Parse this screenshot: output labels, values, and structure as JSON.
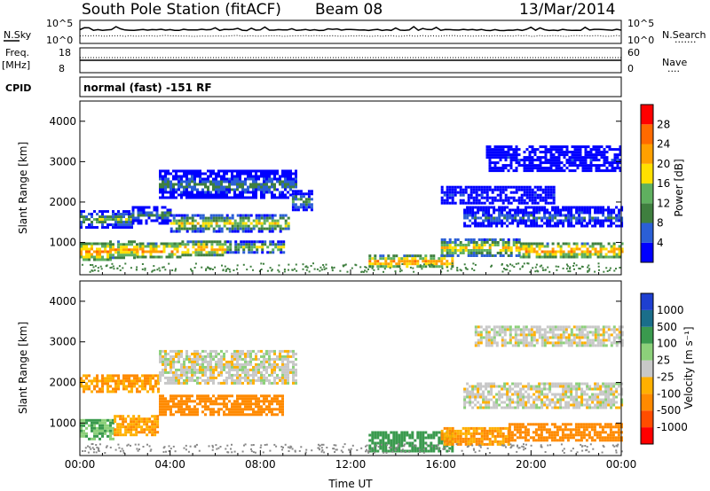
{
  "header": {
    "station": "South Pole Station (fitACF)",
    "beam": "Beam 08",
    "date": "13/Mar/2014"
  },
  "left_labels": {
    "nsky": "N.Sky",
    "freq": "Freq.",
    "mhz": "[MHz]",
    "cpid": "CPID"
  },
  "right_labels": {
    "nsearch": "N.Search",
    "nave": "Nave",
    "dots": "·······",
    "dots_short": "····"
  },
  "noise_ticks": {
    "top_left": "10^5",
    "bottom_left": "10^0",
    "top_right": "10^5",
    "bottom_right": "10^0"
  },
  "freq_ticks": {
    "left_top": "18",
    "left_bottom": "8",
    "right_top": "60",
    "right_bottom": "0"
  },
  "cpid_text": "normal (fast) -151 RF",
  "colors": {
    "power": [
      "#0000ff",
      "#2b5fd6",
      "#3f7f3f",
      "#5fb05f",
      "#ffe000",
      "#ffa000",
      "#ff6a00",
      "#ff0000"
    ],
    "velocity": [
      "#ff0000",
      "#ff4d00",
      "#ff8a00",
      "#ffb000",
      "#c8c8c8",
      "#8cd07a",
      "#3a9a4e",
      "#1a6e8a",
      "#1e3fd0"
    ]
  },
  "chart_data": [
    {
      "type": "heatmap",
      "ylabel": "Slant Range [km]",
      "yticks": [
        "1000",
        "2000",
        "3000",
        "4000"
      ],
      "colorbar_label": "Power [dB]",
      "colorbar_ticks": [
        "4",
        "8",
        "12",
        "16",
        "20",
        "24",
        "28"
      ],
      "ylim": [
        200,
        4500
      ],
      "bands": [
        {
          "x0": 0.0,
          "x1": 1.3,
          "y0": 600,
          "y1": 1000,
          "v": 27
        },
        {
          "x0": 1.3,
          "x1": 2.5,
          "y0": 650,
          "y1": 1050,
          "v": 24
        },
        {
          "x0": 2.5,
          "x1": 4.5,
          "y0": 650,
          "y1": 1000,
          "v": 26
        },
        {
          "x0": 4.5,
          "x1": 6.5,
          "y0": 700,
          "y1": 1050,
          "v": 25
        },
        {
          "x0": 6.5,
          "x1": 9.0,
          "y0": 750,
          "y1": 1050,
          "v": 18
        },
        {
          "x0": 0.0,
          "x1": 2.3,
          "y0": 1400,
          "y1": 1800,
          "v": 16
        },
        {
          "x0": 2.3,
          "x1": 4.0,
          "y0": 1500,
          "y1": 1900,
          "v": 12
        },
        {
          "x0": 4.0,
          "x1": 9.2,
          "y0": 1300,
          "y1": 1700,
          "v": 20
        },
        {
          "x0": 3.5,
          "x1": 9.6,
          "y0": 2100,
          "y1": 2800,
          "v": 12
        },
        {
          "x0": 9.4,
          "x1": 10.3,
          "y0": 1800,
          "y1": 2300,
          "v": 14
        },
        {
          "x0": 12.8,
          "x1": 16.5,
          "y0": 400,
          "y1": 700,
          "v": 26
        },
        {
          "x0": 16.0,
          "x1": 19.5,
          "y0": 700,
          "y1": 1100,
          "v": 22
        },
        {
          "x0": 19.5,
          "x1": 24.0,
          "y0": 650,
          "y1": 1000,
          "v": 26
        },
        {
          "x0": 17.0,
          "x1": 24.0,
          "y0": 1400,
          "y1": 1900,
          "v": 10
        },
        {
          "x0": 16.0,
          "x1": 21.0,
          "y0": 2000,
          "y1": 2400,
          "v": 6
        },
        {
          "x0": 18.0,
          "x1": 24.0,
          "y0": 2800,
          "y1": 3400,
          "v": 5
        }
      ]
    },
    {
      "type": "heatmap",
      "ylabel": "Slant Range [km]",
      "xlabel": "Time UT",
      "xticks": [
        "00:00",
        "04:00",
        "08:00",
        "12:00",
        "16:00",
        "20:00",
        "00:00"
      ],
      "yticks": [
        "1000",
        "2000",
        "3000",
        "4000"
      ],
      "colorbar_label": "Velocity [m s⁻¹]",
      "colorbar_ticks": [
        "-1000",
        "-500",
        "-100",
        "-25",
        "25",
        "100",
        "500",
        "1000"
      ],
      "ylim": [
        200,
        4500
      ],
      "bands": [
        {
          "x0": 0.0,
          "x1": 1.5,
          "y0": 600,
          "y1": 1100,
          "v": 100
        },
        {
          "x0": 1.5,
          "x1": 3.5,
          "y0": 700,
          "y1": 1200,
          "v": -100
        },
        {
          "x0": 3.5,
          "x1": 9.0,
          "y0": 1200,
          "y1": 1700,
          "v": -400
        },
        {
          "x0": 0.0,
          "x1": 3.5,
          "y0": 1800,
          "y1": 2200,
          "v": -100
        },
        {
          "x0": 3.5,
          "x1": 9.6,
          "y0": 2000,
          "y1": 2800,
          "v": 0
        },
        {
          "x0": 12.8,
          "x1": 16.5,
          "y0": 300,
          "y1": 800,
          "v": 200
        },
        {
          "x0": 16.0,
          "x1": 19.0,
          "y0": 500,
          "y1": 900,
          "v": -100
        },
        {
          "x0": 19.0,
          "x1": 24.0,
          "y0": 600,
          "y1": 1000,
          "v": -200
        },
        {
          "x0": 17.0,
          "x1": 24.0,
          "y0": 1400,
          "y1": 2000,
          "v": 0
        },
        {
          "x0": 17.5,
          "x1": 24.0,
          "y0": 2900,
          "y1": 3400,
          "v": 0
        }
      ]
    }
  ]
}
